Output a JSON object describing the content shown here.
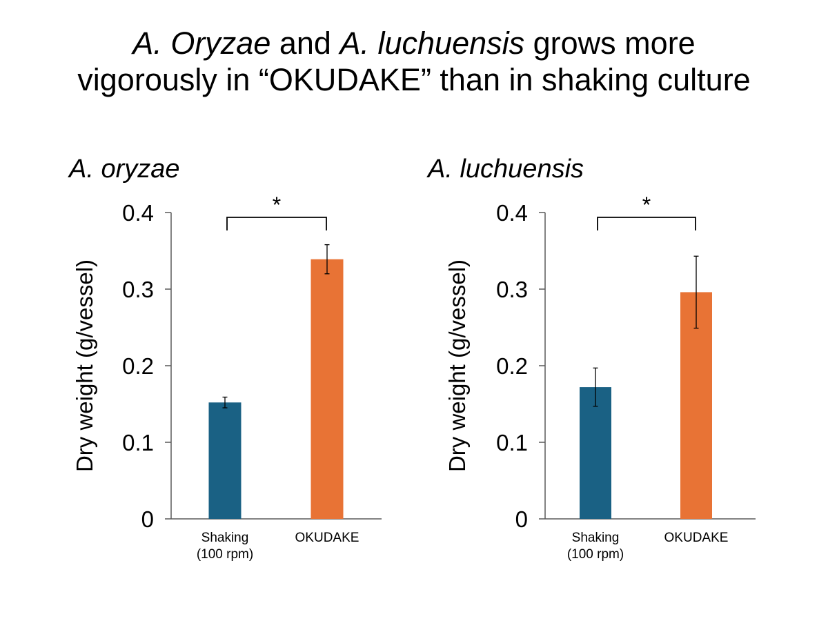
{
  "title": {
    "line1": {
      "italic1": "A.",
      "italic2": "Oryzae",
      "mid": " and ",
      "italic3": "A.",
      "italic4": "luchuensis",
      "rest": " grows more"
    },
    "line2": "vigorously in “OKUDAKE” than in shaking culture"
  },
  "chart_data": [
    {
      "type": "bar",
      "title": "A. oryzae",
      "ylabel": "Dry weight (g/vessel)",
      "xlabel": "",
      "ylim": [
        0,
        0.4
      ],
      "yticks": [
        "0",
        "0.1",
        "0.2",
        "0.3",
        "0.4"
      ],
      "yticks_values": [
        0,
        0.1,
        0.2,
        0.3,
        0.4
      ],
      "categories": [
        [
          "Shaking",
          "(100 rpm)"
        ],
        [
          "OKUDAKE"
        ]
      ],
      "values": [
        0.152,
        0.339
      ],
      "errors": [
        0.007,
        0.019
      ],
      "colors": [
        "#1a6184",
        "#e87335"
      ],
      "significance": "*",
      "grid": false
    },
    {
      "type": "bar",
      "title": "A. luchuensis",
      "ylabel": "Dry weight (g/vessel)",
      "xlabel": "",
      "ylim": [
        0,
        0.4
      ],
      "yticks": [
        "0",
        "0.1",
        "0.2",
        "0.3",
        "0.4"
      ],
      "yticks_values": [
        0,
        0.1,
        0.2,
        0.3,
        0.4
      ],
      "categories": [
        [
          "Shaking",
          "(100 rpm)"
        ],
        [
          "OKUDAKE"
        ]
      ],
      "values": [
        0.172,
        0.296
      ],
      "errors": [
        0.025,
        0.047
      ],
      "colors": [
        "#1a6184",
        "#e87335"
      ],
      "significance": "*",
      "grid": false
    }
  ]
}
